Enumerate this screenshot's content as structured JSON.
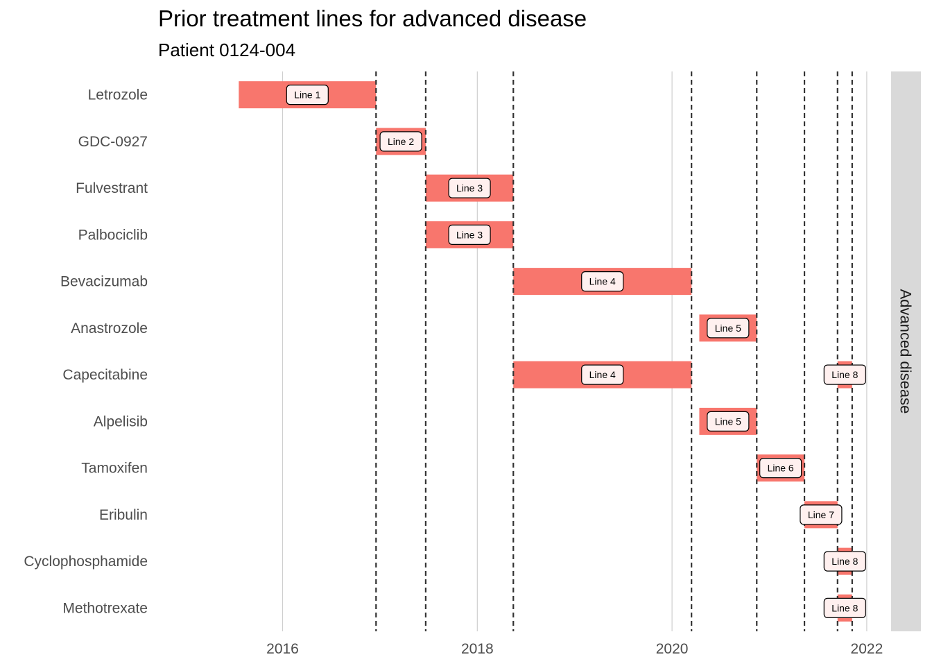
{
  "chart_data": {
    "type": "gantt",
    "title": "Prior treatment lines for advanced disease",
    "subtitle": "Patient 0124-004",
    "facet_label": "Advanced disease",
    "bar_color": "#F8766D",
    "label_fill": "#FFF0EF",
    "xlim": [
      2014.75,
      2022.2
    ],
    "x_ticks": [
      2016,
      2018,
      2020,
      2022
    ],
    "line_change_dates": [
      2016.96,
      2017.47,
      2018.37,
      2020.2,
      2020.87,
      2021.36,
      2021.7,
      2021.85
    ],
    "categories": [
      "Letrozole",
      "GDC-0927",
      "Fulvestrant",
      "Palbociclib",
      "Bevacizumab",
      "Anastrozole",
      "Capecitabine",
      "Alpelisib",
      "Tamoxifen",
      "Eribulin",
      "Cyclophosphamide",
      "Methotrexate"
    ],
    "treatments": [
      {
        "drug": "Letrozole",
        "start": 2015.55,
        "end": 2016.96,
        "line": "Line 1"
      },
      {
        "drug": "GDC-0927",
        "start": 2016.96,
        "end": 2017.47,
        "line": "Line 2"
      },
      {
        "drug": "Fulvestrant",
        "start": 2017.47,
        "end": 2018.37,
        "line": "Line 3"
      },
      {
        "drug": "Palbociclib",
        "start": 2017.47,
        "end": 2018.37,
        "line": "Line 3"
      },
      {
        "drug": "Bevacizumab",
        "start": 2018.37,
        "end": 2020.2,
        "line": "Line 4"
      },
      {
        "drug": "Anastrozole",
        "start": 2020.28,
        "end": 2020.87,
        "line": "Line 5"
      },
      {
        "drug": "Capecitabine",
        "start": 2018.37,
        "end": 2020.2,
        "line": "Line 4"
      },
      {
        "drug": "Capecitabine",
        "start": 2021.7,
        "end": 2021.85,
        "line": "Line 8"
      },
      {
        "drug": "Alpelisib",
        "start": 2020.28,
        "end": 2020.87,
        "line": "Line 5"
      },
      {
        "drug": "Tamoxifen",
        "start": 2020.87,
        "end": 2021.36,
        "line": "Line 6"
      },
      {
        "drug": "Eribulin",
        "start": 2021.36,
        "end": 2021.7,
        "line": "Line 7"
      },
      {
        "drug": "Cyclophosphamide",
        "start": 2021.7,
        "end": 2021.85,
        "line": "Line 8"
      },
      {
        "drug": "Methotrexate",
        "start": 2021.7,
        "end": 2021.85,
        "line": "Line 8"
      }
    ]
  }
}
